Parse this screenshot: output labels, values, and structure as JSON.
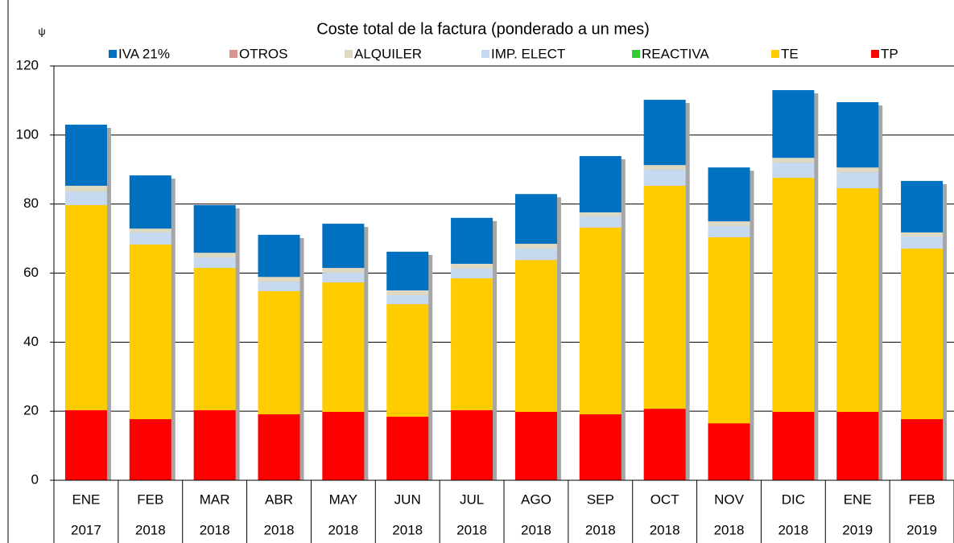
{
  "chart_data": {
    "type": "stacked_bar",
    "title": "Coste total de la factura (ponderado a un mes)",
    "y_label": "ψ",
    "categories": [
      [
        "ENE",
        "2017"
      ],
      [
        "FEB",
        "2018"
      ],
      [
        "MAR",
        "2018"
      ],
      [
        "ABR",
        "2018"
      ],
      [
        "MAY",
        "2018"
      ],
      [
        "JUN",
        "2018"
      ],
      [
        "JUL",
        "2018"
      ],
      [
        "AGO",
        "2018"
      ],
      [
        "SEP",
        "2018"
      ],
      [
        "OCT",
        "2018"
      ],
      [
        "NOV",
        "2018"
      ],
      [
        "DIC",
        "2018"
      ],
      [
        "ENE",
        "2019"
      ],
      [
        "FEB",
        "2019"
      ]
    ],
    "series": [
      {
        "name": "TP",
        "color": "#ff0000",
        "values": [
          20.3,
          17.7,
          20.3,
          19.1,
          19.8,
          18.4,
          20.3,
          19.8,
          19.1,
          20.7,
          16.5,
          19.8,
          19.8,
          17.7
        ]
      },
      {
        "name": "TE",
        "color": "#ffcc00",
        "values": [
          59.4,
          50.6,
          41.2,
          35.7,
          37.5,
          32.6,
          38.2,
          44.0,
          54.1,
          64.6,
          53.9,
          67.8,
          64.8,
          49.4
        ]
      },
      {
        "name": "REACTIVA",
        "color": "#33cc33",
        "values": [
          0,
          0,
          0,
          0,
          0,
          0,
          0,
          0,
          0,
          0,
          0,
          0,
          0,
          0
        ]
      },
      {
        "name": "IMP. ELECT",
        "color": "#c6d9f1",
        "values": [
          3.9,
          3.5,
          3.0,
          2.7,
          2.8,
          2.6,
          2.8,
          3.3,
          3.2,
          4.6,
          3.2,
          4.4,
          4.6,
          3.5
        ]
      },
      {
        "name": "ALQUILER",
        "color": "#ddd9c3",
        "values": [
          1.7,
          1.1,
          1.4,
          1.4,
          1.4,
          1.4,
          1.4,
          1.4,
          1.2,
          1.4,
          1.4,
          1.4,
          1.4,
          1.2
        ]
      },
      {
        "name": "OTROS",
        "color": "#d99594",
        "values": [
          0,
          0,
          0,
          0,
          0,
          0,
          0,
          0,
          0,
          0,
          0,
          0,
          0,
          0
        ]
      },
      {
        "name": "IVA 21%",
        "color": "#0070c0",
        "values": [
          17.7,
          15.4,
          13.8,
          12.2,
          12.8,
          11.2,
          13.3,
          14.4,
          16.3,
          18.9,
          15.6,
          19.6,
          18.9,
          14.9
        ]
      }
    ],
    "ylim": [
      0,
      120
    ],
    "yticks": [
      0,
      20,
      40,
      60,
      80,
      100,
      120
    ],
    "grid": true
  }
}
